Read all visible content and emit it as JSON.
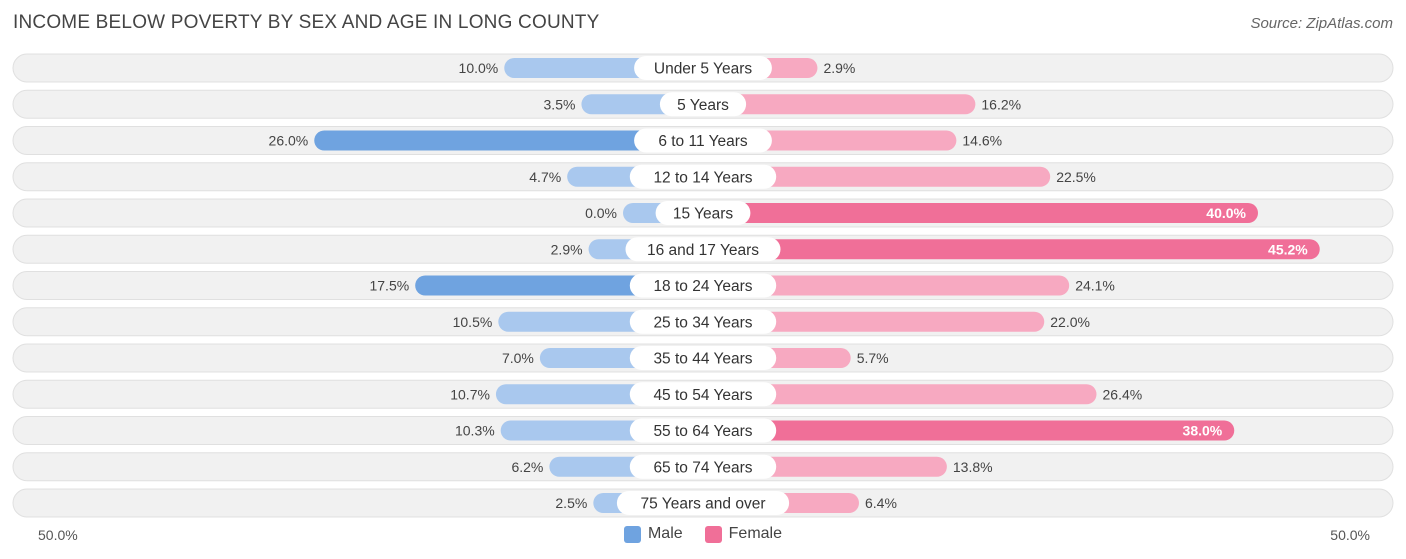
{
  "title": "INCOME BELOW POVERTY BY SEX AND AGE IN LONG COUNTY",
  "source": "Source: ZipAtlas.com",
  "colors": {
    "male_strong": "#6fa3e0",
    "male_light": "#a9c8ee",
    "female_strong": "#f06f98",
    "female_light": "#f7a9c1",
    "row_bg": "#f1f1f1",
    "row_border": "#e0e0e0"
  },
  "legend": {
    "male": "Male",
    "female": "Female"
  },
  "axis": {
    "left_label": "50.0%",
    "right_label": "50.0%"
  },
  "chart_data": {
    "type": "bar",
    "orientation": "horizontal-diverging",
    "title": "INCOME BELOW POVERTY BY SEX AND AGE IN LONG COUNTY",
    "xlim": [
      -50,
      50
    ],
    "categories": [
      "Under 5 Years",
      "5 Years",
      "6 to 11 Years",
      "12 to 14 Years",
      "15 Years",
      "16 and 17 Years",
      "18 to 24 Years",
      "25 to 34 Years",
      "35 to 44 Years",
      "45 to 54 Years",
      "55 to 64 Years",
      "65 to 74 Years",
      "75 Years and over"
    ],
    "series": [
      {
        "name": "Male",
        "values": [
          10.0,
          3.5,
          26.0,
          4.7,
          0.0,
          2.9,
          17.5,
          10.5,
          7.0,
          10.7,
          10.3,
          6.2,
          2.5
        ],
        "labels": [
          "10.0%",
          "3.5%",
          "26.0%",
          "4.7%",
          "0.0%",
          "2.9%",
          "17.5%",
          "10.5%",
          "7.0%",
          "10.7%",
          "10.3%",
          "6.2%",
          "2.5%"
        ]
      },
      {
        "name": "Female",
        "values": [
          2.9,
          16.2,
          14.6,
          22.5,
          40.0,
          45.2,
          24.1,
          22.0,
          5.7,
          26.4,
          38.0,
          13.8,
          6.4
        ],
        "labels": [
          "2.9%",
          "16.2%",
          "14.6%",
          "22.5%",
          "40.0%",
          "45.2%",
          "24.1%",
          "22.0%",
          "5.7%",
          "26.4%",
          "38.0%",
          "13.8%",
          "6.4%"
        ]
      }
    ]
  }
}
